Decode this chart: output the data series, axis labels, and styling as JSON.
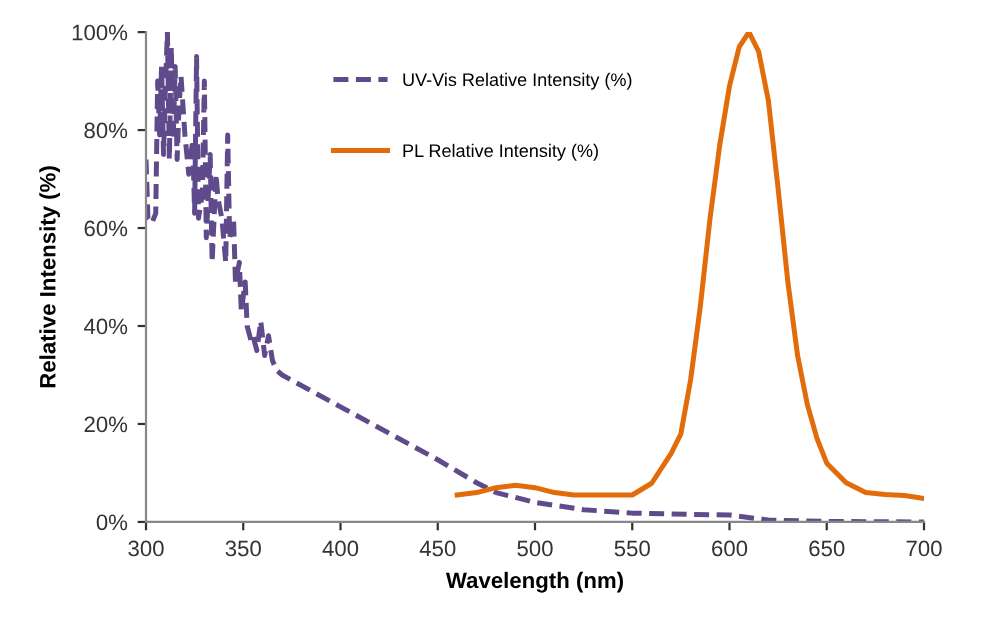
{
  "chart_data": {
    "type": "line",
    "xlabel": "Wavelength (nm)",
    "ylabel": "Relative Intensity (%)",
    "xlim": [
      300,
      700
    ],
    "xticks": [
      300,
      350,
      400,
      450,
      500,
      550,
      600,
      650,
      700
    ],
    "ylim": [
      0,
      100
    ],
    "yticks": [
      {
        "value": 0,
        "label": "0%"
      },
      {
        "value": 20,
        "label": "20%"
      },
      {
        "value": 40,
        "label": "40%"
      },
      {
        "value": 60,
        "label": "60%"
      },
      {
        "value": 80,
        "label": "80%"
      },
      {
        "value": 100,
        "label": "100%"
      }
    ],
    "grid": false,
    "legend": "top",
    "marker": "none",
    "series": [
      {
        "name": "UV-Vis Relative Intensity (%)",
        "color": "#5f4b8b",
        "line_style": "dashed",
        "x": [
          300,
          301,
          303,
          305,
          306,
          307,
          308,
          309,
          310,
          311,
          312,
          313,
          314,
          315,
          316,
          317,
          318,
          320,
          322,
          324,
          325,
          326,
          327,
          329,
          330,
          331,
          333,
          334,
          336,
          337,
          339,
          341,
          342,
          343,
          345,
          346,
          348,
          349,
          351,
          352,
          354,
          355,
          357,
          359,
          361,
          363,
          365,
          367,
          370,
          400,
          450,
          470,
          480,
          500,
          525,
          550,
          600,
          620,
          650,
          700
        ],
        "values": [
          74,
          62,
          61,
          63,
          90,
          79,
          93,
          75,
          89,
          100,
          74,
          97,
          78,
          93,
          74,
          85,
          91,
          79,
          71,
          78,
          63,
          95,
          62,
          67,
          90,
          58,
          75,
          53,
          71,
          66,
          62,
          53,
          79,
          58,
          62,
          49,
          53,
          43,
          49,
          40,
          37,
          38,
          35,
          41,
          34,
          38,
          33,
          31,
          30,
          23.5,
          12.7,
          8,
          6,
          4,
          2.5,
          1.8,
          1.4,
          0.4,
          0.1,
          0
        ]
      },
      {
        "name": "PL Relative Intensity (%)",
        "color": "#e36c0a",
        "line_style": "solid",
        "x": [
          460,
          470,
          480,
          490,
          500,
          510,
          520,
          540,
          550,
          560,
          570,
          575,
          580,
          585,
          590,
          595,
          600,
          605,
          610,
          615,
          620,
          625,
          630,
          635,
          640,
          645,
          650,
          660,
          670,
          680,
          690,
          700
        ],
        "values": [
          5.5,
          6,
          7,
          7.5,
          7,
          6,
          5.5,
          5.5,
          5.5,
          7.9,
          14,
          18,
          29,
          44,
          62,
          77,
          89,
          97,
          100,
          96,
          86,
          68,
          49,
          34,
          24,
          17,
          12,
          8,
          6,
          5.6,
          5.4,
          4.8
        ]
      }
    ]
  }
}
